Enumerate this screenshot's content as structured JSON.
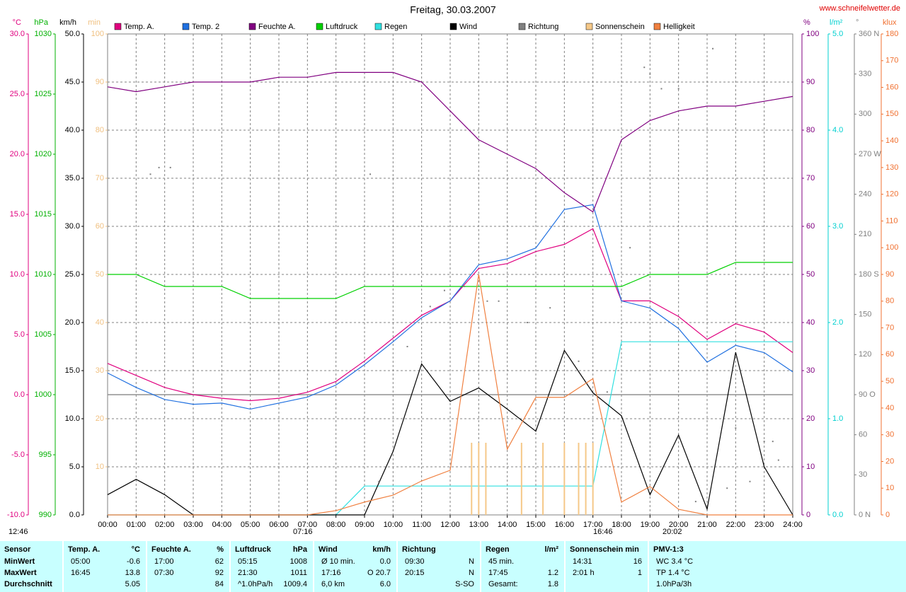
{
  "chart_data": {
    "type": "line",
    "title": "Freitag, 30.03.2007",
    "source": "www.schneifelwetter.de",
    "annotations": [
      "12:46",
      "07:16",
      "16:46",
      "20:02"
    ],
    "xlim": [
      0,
      24
    ],
    "xticks": [
      {
        "value": 0,
        "label": "00:00"
      },
      {
        "value": 1,
        "label": "01:00"
      },
      {
        "value": 2,
        "label": "02:00"
      },
      {
        "value": 3,
        "label": "03:00"
      },
      {
        "value": 4,
        "label": "04:00"
      },
      {
        "value": 5,
        "label": "05:00"
      },
      {
        "value": 6,
        "label": "06:00"
      },
      {
        "value": 7,
        "label": "07:00"
      },
      {
        "value": 8,
        "label": "08:00"
      },
      {
        "value": 9,
        "label": "09:00"
      },
      {
        "value": 10,
        "label": "10:00"
      },
      {
        "value": 11,
        "label": "11:00"
      },
      {
        "value": 12,
        "label": "12:00"
      },
      {
        "value": 13,
        "label": "13:00"
      },
      {
        "value": 14,
        "label": "14:00"
      },
      {
        "value": 15,
        "label": "15:00"
      },
      {
        "value": 16,
        "label": "16:00"
      },
      {
        "value": 17,
        "label": "17:00"
      },
      {
        "value": 18,
        "label": "18:00"
      },
      {
        "value": 19,
        "label": "19:00"
      },
      {
        "value": 20,
        "label": "20:00"
      },
      {
        "value": 21,
        "label": "21:00"
      },
      {
        "value": 22,
        "label": "22:00"
      },
      {
        "value": 23,
        "label": "23:00"
      },
      {
        "value": 24,
        "label": "24:00"
      }
    ],
    "grid": true,
    "axes": [
      {
        "unit": "°C",
        "side": "left",
        "color": "#e0007f",
        "lim": [
          -10,
          30
        ],
        "ticks": [
          {
            "value": -10,
            "label": "-10.0"
          },
          {
            "value": -5,
            "label": "-5.0"
          },
          {
            "value": 0,
            "label": "0.0"
          },
          {
            "value": 5,
            "label": "5.0"
          },
          {
            "value": 10,
            "label": "10.0"
          },
          {
            "value": 15,
            "label": "15.0"
          },
          {
            "value": 20,
            "label": "20.0"
          },
          {
            "value": 25,
            "label": "25.0"
          },
          {
            "value": 30,
            "label": "30.0"
          }
        ]
      },
      {
        "unit": "hPa",
        "side": "left",
        "color": "#00b000",
        "lim": [
          990,
          1030
        ],
        "ticks": [
          990,
          995,
          1000,
          1005,
          1010,
          1015,
          1020,
          1025,
          1030
        ]
      },
      {
        "unit": "km/h",
        "side": "left",
        "color": "#000000",
        "lim": [
          0,
          50
        ],
        "ticks": [
          {
            "value": 0,
            "label": "0.0"
          },
          {
            "value": 5,
            "label": "5.0"
          },
          {
            "value": 10,
            "label": "10.0"
          },
          {
            "value": 15,
            "label": "15.0"
          },
          {
            "value": 20,
            "label": "20.0"
          },
          {
            "value": 25,
            "label": "25.0"
          },
          {
            "value": 30,
            "label": "30.0"
          },
          {
            "value": 35,
            "label": "35.0"
          },
          {
            "value": 40,
            "label": "40.0"
          },
          {
            "value": 45,
            "label": "45.0"
          },
          {
            "value": 50,
            "label": "50.0"
          }
        ]
      },
      {
        "unit": "min",
        "side": "left",
        "color": "#f0c080",
        "lim": [
          0,
          100
        ],
        "ticks": [
          10,
          20,
          30,
          40,
          50,
          60,
          70,
          80,
          90,
          100
        ]
      },
      {
        "unit": "%",
        "side": "right",
        "color": "#800080",
        "lim": [
          0,
          100
        ],
        "ticks": [
          0,
          10,
          20,
          30,
          40,
          50,
          60,
          70,
          80,
          90,
          100
        ]
      },
      {
        "unit": "l/m²",
        "side": "right",
        "color": "#00d0d0",
        "lim": [
          0,
          5
        ],
        "ticks": [
          {
            "value": 0,
            "label": "0.0"
          },
          {
            "value": 1,
            "label": "1.0"
          },
          {
            "value": 2,
            "label": "2.0"
          },
          {
            "value": 3,
            "label": "3.0"
          },
          {
            "value": 4,
            "label": "4.0"
          },
          {
            "value": 5,
            "label": "5.0"
          }
        ]
      },
      {
        "unit": "°",
        "side": "right",
        "color": "#808080",
        "lim": [
          0,
          360
        ],
        "ticks": [
          {
            "value": 0,
            "label": "0 N"
          },
          30,
          60,
          {
            "value": 90,
            "label": "90 O"
          },
          120,
          150,
          {
            "value": 180,
            "label": "180 S"
          },
          210,
          240,
          {
            "value": 270,
            "label": "270 W"
          },
          300,
          330,
          {
            "value": 360,
            "label": "360 N"
          }
        ]
      },
      {
        "unit": "klux",
        "side": "right",
        "color": "#f07030",
        "lim": [
          0,
          180
        ],
        "ticks": [
          0,
          10,
          20,
          30,
          40,
          50,
          60,
          70,
          80,
          90,
          100,
          110,
          120,
          130,
          140,
          150,
          160,
          170,
          180
        ]
      }
    ],
    "x": [
      0,
      1,
      2,
      3,
      4,
      5,
      6,
      7,
      8,
      9,
      10,
      11,
      12,
      13,
      14,
      15,
      16,
      17,
      18,
      19,
      20,
      21,
      22,
      23,
      24
    ],
    "series": [
      {
        "name": "Temp. A.",
        "color": "#e0007f",
        "axis": 0,
        "values": [
          2.6,
          1.6,
          0.6,
          0.0,
          -0.3,
          -0.5,
          -0.3,
          0.2,
          1.1,
          2.8,
          4.7,
          6.6,
          7.8,
          10.5,
          10.9,
          11.9,
          12.5,
          13.8,
          7.8,
          7.8,
          6.5,
          4.6,
          5.9,
          5.2,
          3.5
        ]
      },
      {
        "name": "Temp. 2",
        "color": "#2070e0",
        "axis": 0,
        "values": [
          1.8,
          0.6,
          -0.4,
          -0.8,
          -0.7,
          -1.2,
          -0.7,
          -0.2,
          0.8,
          2.5,
          4.4,
          6.4,
          7.8,
          10.8,
          11.3,
          12.2,
          15.4,
          15.8,
          7.8,
          7.2,
          5.5,
          2.7,
          4.1,
          3.5,
          1.9
        ]
      },
      {
        "name": "Feuchte A.",
        "color": "#800080",
        "axis": 4,
        "values": [
          89,
          88,
          89,
          90,
          90,
          90,
          91,
          91,
          92,
          92,
          92,
          90,
          84,
          78,
          75,
          72,
          67,
          63,
          78,
          82,
          84,
          85,
          85,
          86,
          87
        ]
      },
      {
        "name": "Luftdruck",
        "color": "#00d000",
        "axis": 1,
        "values": [
          1010,
          1010,
          1009,
          1009,
          1009,
          1008,
          1008,
          1008,
          1008,
          1009,
          1009,
          1009,
          1009,
          1009,
          1009,
          1009,
          1009,
          1009,
          1009,
          1010,
          1010,
          1010,
          1011,
          1011,
          1011
        ]
      },
      {
        "name": "Regen",
        "color": "#30e0e0",
        "axis": 5,
        "values": [
          0,
          0,
          0,
          0,
          0,
          0,
          0,
          0,
          0,
          0.3,
          0.3,
          0.3,
          0.3,
          0.3,
          0.3,
          0.3,
          0.3,
          0.3,
          1.8,
          1.8,
          1.8,
          1.8,
          1.8,
          1.8,
          1.8
        ]
      },
      {
        "name": "Wind",
        "color": "#000000",
        "axis": 2,
        "values": [
          2.1,
          3.7,
          2.1,
          0,
          0,
          0,
          0,
          0,
          0,
          0,
          6.6,
          15.7,
          11.8,
          13.2,
          11.0,
          8.7,
          17.1,
          12.7,
          10.3,
          2.1,
          8.3,
          0.6,
          16.9,
          5.0,
          0
        ]
      },
      {
        "name": "Richtung",
        "color": "#808080",
        "axis": 6,
        "kind": "dots",
        "x": [
          1.5,
          1.8,
          2.2,
          9.2,
          9.5,
          10.5,
          11.3,
          11.8,
          12.5,
          13.3,
          13.7,
          14.7,
          15.5,
          16.5,
          17.5,
          18.3,
          18.8,
          19.0,
          19.4,
          20.0,
          20.6,
          21.2,
          21.7,
          22.0,
          22.5,
          23.0,
          23.3,
          23.5
        ],
        "values": [
          255,
          260,
          260,
          255,
          25,
          126,
          156,
          168,
          171,
          160,
          160,
          144,
          155,
          115,
          92,
          200,
          335,
          330,
          319,
          319,
          10,
          349,
          20,
          65,
          25,
          55,
          55,
          41
        ]
      },
      {
        "name": "Sonnenschein",
        "color": "#f5c888",
        "axis": 3,
        "kind": "bars",
        "x": [
          12.75,
          13.0,
          13.25,
          14.5,
          15.25,
          16.0,
          16.5,
          16.75,
          17.0
        ],
        "values": [
          15,
          15,
          15,
          15,
          15,
          15,
          15,
          15,
          15
        ]
      },
      {
        "name": "Helligkeit",
        "color": "#f08040",
        "axis": 7,
        "values": [
          0,
          0,
          0,
          0,
          0,
          0,
          0,
          0,
          1.6,
          4.8,
          7.4,
          12.7,
          16.7,
          90,
          24.6,
          44,
          44,
          51,
          4.8,
          10.6,
          2.1,
          0,
          0,
          0,
          0
        ]
      }
    ]
  },
  "table": {
    "columns": [
      {
        "name": "Sensor",
        "rows": [
          {
            "left": "MinWert"
          },
          {
            "left": "MaxWert"
          },
          {
            "left": "Durchschnitt"
          }
        ]
      },
      {
        "name": "Temp. A.",
        "unit": "°C",
        "rows": [
          {
            "left": "05:00",
            "right": "-0.6"
          },
          {
            "left": "16:45",
            "right": "13.8"
          },
          {
            "right": "5.05"
          }
        ]
      },
      {
        "name": "Feuchte A.",
        "unit": "%",
        "rows": [
          {
            "left": "17:00",
            "right": "62"
          },
          {
            "left": "07:30",
            "right": "92"
          },
          {
            "right": "84"
          }
        ]
      },
      {
        "name": "Luftdruck",
        "unit": "hPa",
        "rows": [
          {
            "left": "05:15",
            "right": "1008"
          },
          {
            "left": "21:30",
            "right": "1011"
          },
          {
            "left": "^1.0hPa/h",
            "right": "1009.4"
          }
        ]
      },
      {
        "name": "Wind",
        "unit": "km/h",
        "rows": [
          {
            "left": "Ø 10 min.",
            "right": "0.0"
          },
          {
            "left": "17:16",
            "right": "O 20.7"
          },
          {
            "left": "6,0 km",
            "right": "6.0"
          }
        ]
      },
      {
        "name": "Richtung",
        "rows": [
          {
            "left": "09:30",
            "right": "N"
          },
          {
            "left": "20:15",
            "right": "N"
          },
          {
            "right": "S-SO"
          }
        ]
      },
      {
        "name": "Regen",
        "unit": "l/m²",
        "rows": [
          {
            "left": "45 min."
          },
          {
            "left": "17:45",
            "right": "1.2"
          },
          {
            "left": "Gesamt:",
            "right": "1.8"
          }
        ]
      },
      {
        "name": "Sonnenschein min",
        "rows": [
          {
            "left": "14:31",
            "right": "16"
          },
          {
            "left": "2:01 h",
            "right": "1"
          },
          {}
        ]
      },
      {
        "name": "PMV-1:3",
        "rows": [
          {
            "left": "WC 3.4 °C"
          },
          {
            "left": "TP 1.4 °C"
          },
          {
            "left": "1.0hPa/3h"
          }
        ]
      }
    ]
  }
}
